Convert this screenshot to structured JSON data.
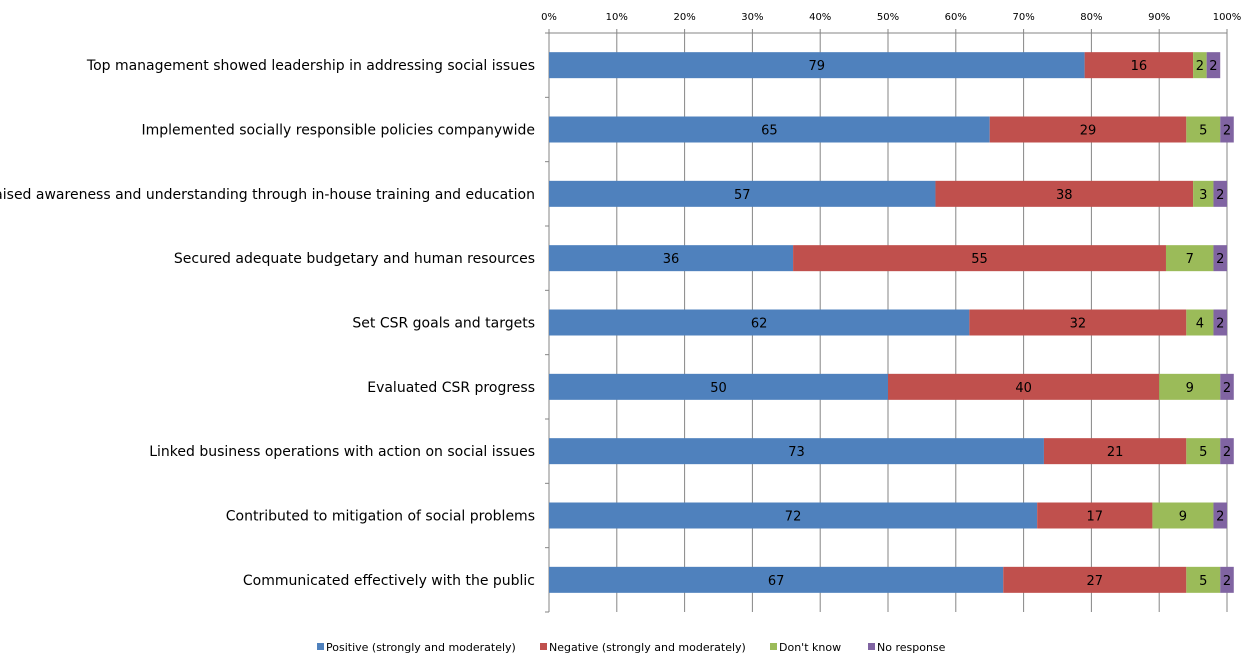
{
  "chart_data": {
    "type": "bar",
    "orientation": "horizontal",
    "stacked": true,
    "categories": [
      "Top management showed leadership in addressing social issues",
      "Implemented socially responsible policies companywide",
      "Raised awareness and understanding through in-house training and education",
      "Secured adequate budgetary and human resources",
      "Set CSR goals and targets",
      "Evaluated CSR progress",
      "Linked business operations with action on social issues",
      "Contributed to mitigation of social problems",
      "Communicated effectively with the public"
    ],
    "series": [
      {
        "name": "Positive (strongly and moderately)",
        "color": "#4F81BD",
        "values": [
          79,
          65,
          57,
          36,
          62,
          50,
          73,
          72,
          67
        ]
      },
      {
        "name": "Negative (strongly and moderately)",
        "color": "#C0504D",
        "values": [
          16,
          29,
          38,
          55,
          32,
          40,
          21,
          17,
          27
        ]
      },
      {
        "name": "Don't know",
        "color": "#9BBB59",
        "values": [
          2,
          5,
          3,
          7,
          4,
          9,
          5,
          9,
          5
        ]
      },
      {
        "name": "No response",
        "color": "#8064A2",
        "values": [
          2,
          2,
          2,
          2,
          2,
          2,
          2,
          2,
          2
        ]
      }
    ],
    "xlim": [
      0,
      100
    ],
    "x_ticks": [
      "0%",
      "10%",
      "20%",
      "30%",
      "40%",
      "50%",
      "60%",
      "70%",
      "80%",
      "90%",
      "100%"
    ],
    "grid": true,
    "legend": "bottom"
  }
}
